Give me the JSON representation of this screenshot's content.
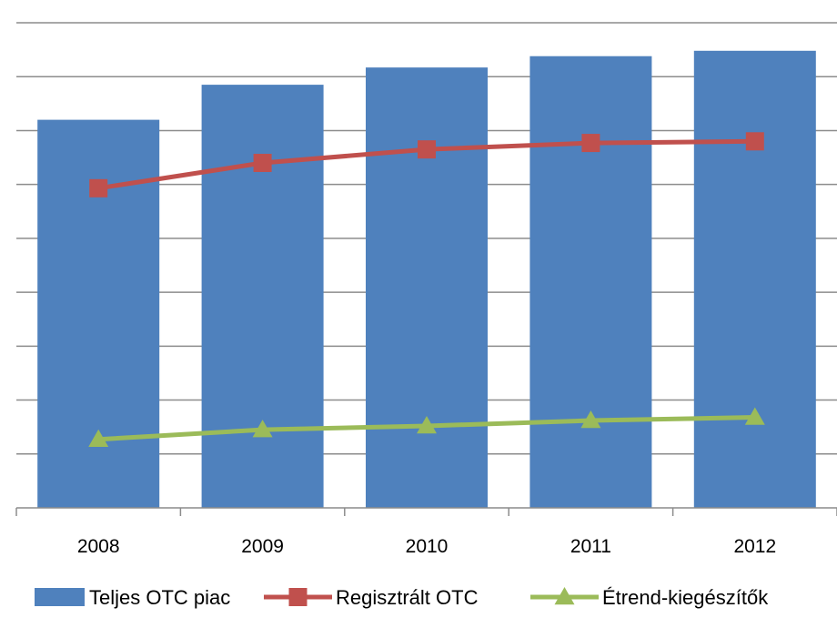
{
  "chart_data": {
    "type": "bar",
    "title": "",
    "xlabel": "",
    "ylabel": "",
    "categories": [
      "2008",
      "2009",
      "2010",
      "2011",
      "2012"
    ],
    "ylim": [
      0,
      9
    ],
    "grid": true,
    "legend_position": "bottom",
    "series": [
      {
        "name": "Teljes OTC piac",
        "kind": "bar",
        "color": "#4F81BD",
        "values": [
          7.2,
          7.85,
          8.17,
          8.38,
          8.48
        ]
      },
      {
        "name": "Regisztrált OTC",
        "kind": "line",
        "marker": "square",
        "color": "#C0504D",
        "values": [
          5.93,
          6.4,
          6.65,
          6.77,
          6.8
        ]
      },
      {
        "name": "Étrend-kiegészítők",
        "kind": "line",
        "marker": "triangle",
        "color": "#9BBB59",
        "values": [
          1.27,
          1.45,
          1.52,
          1.62,
          1.68
        ]
      }
    ]
  }
}
